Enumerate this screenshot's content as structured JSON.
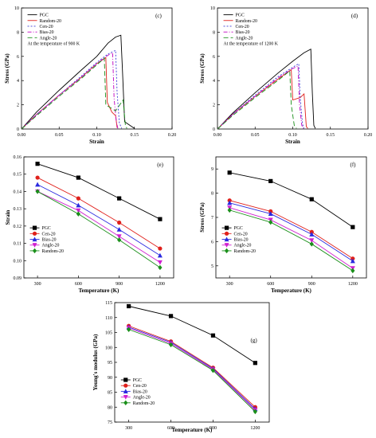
{
  "chart_data": [
    {
      "id": "c",
      "type": "line",
      "panel_label": "(c)",
      "annotation": "At the temperature of 900 K",
      "xlabel": "Strain",
      "ylabel": "Stress (GPa)",
      "xlim": [
        0,
        0.2
      ],
      "ylim": [
        0,
        10
      ],
      "xticks": [
        "0.00",
        "0.05",
        "0.10",
        "0.15",
        "0.20"
      ],
      "yticks": [
        "0",
        "2",
        "4",
        "6",
        "8",
        "10"
      ],
      "legend_position": "top-left",
      "series": [
        {
          "name": "PGC",
          "color": "#000000",
          "dash": "",
          "points": [
            [
              0,
              0
            ],
            [
              0.02,
              1.4
            ],
            [
              0.05,
              3.2
            ],
            [
              0.08,
              4.9
            ],
            [
              0.1,
              6.0
            ],
            [
              0.115,
              7.1
            ],
            [
              0.125,
              7.6
            ],
            [
              0.132,
              7.75
            ],
            [
              0.134,
              5.0
            ],
            [
              0.137,
              0.6
            ],
            [
              0.15,
              0.05
            ]
          ]
        },
        {
          "name": "Random-20",
          "color": "#e0201b",
          "dash": "",
          "points": [
            [
              0,
              0
            ],
            [
              0.02,
              1.2
            ],
            [
              0.05,
              2.8
            ],
            [
              0.08,
              4.3
            ],
            [
              0.1,
              5.4
            ],
            [
              0.112,
              5.9
            ],
            [
              0.114,
              2.2
            ],
            [
              0.12,
              1.4
            ],
            [
              0.125,
              1.1
            ],
            [
              0.127,
              0.1
            ]
          ]
        },
        {
          "name": "Cen-20",
          "color": "#3a3ad6",
          "dash": "2,2",
          "points": [
            [
              0,
              0
            ],
            [
              0.02,
              1.2
            ],
            [
              0.05,
              2.8
            ],
            [
              0.08,
              4.4
            ],
            [
              0.1,
              5.5
            ],
            [
              0.115,
              6.2
            ],
            [
              0.125,
              6.5
            ],
            [
              0.127,
              3.0
            ],
            [
              0.13,
              0.5
            ],
            [
              0.133,
              0.05
            ]
          ]
        },
        {
          "name": "Bias-20",
          "color": "#c000c0",
          "dash": "5,2,1,2",
          "points": [
            [
              0,
              0
            ],
            [
              0.02,
              1.2
            ],
            [
              0.05,
              2.8
            ],
            [
              0.08,
              4.3
            ],
            [
              0.1,
              5.4
            ],
            [
              0.115,
              6.1
            ],
            [
              0.121,
              6.3
            ],
            [
              0.123,
              2.5
            ],
            [
              0.126,
              0.6
            ],
            [
              0.128,
              0.05
            ]
          ]
        },
        {
          "name": "Angle-20",
          "color": "#1a8f1a",
          "dash": "6,3",
          "points": [
            [
              0,
              0
            ],
            [
              0.02,
              1.1
            ],
            [
              0.05,
              2.7
            ],
            [
              0.08,
              4.2
            ],
            [
              0.1,
              5.3
            ],
            [
              0.11,
              5.85
            ],
            [
              0.112,
              2.0
            ],
            [
              0.125,
              1.5
            ],
            [
              0.135,
              2.4
            ],
            [
              0.138,
              0.3
            ],
            [
              0.14,
              0.05
            ]
          ]
        }
      ]
    },
    {
      "id": "d",
      "type": "line",
      "panel_label": "(d)",
      "annotation": "At the temperature of 1200 K",
      "xlabel": "Strain",
      "ylabel": "Stress (GPa)",
      "xlim": [
        0,
        0.2
      ],
      "ylim": [
        0,
        10
      ],
      "xticks": [
        "0.00",
        "0.05",
        "0.10",
        "0.15",
        "0.20"
      ],
      "yticks": [
        "0",
        "2",
        "4",
        "6",
        "8",
        "10"
      ],
      "legend_position": "top-left",
      "series": [
        {
          "name": "PGC",
          "color": "#000000",
          "dash": "",
          "points": [
            [
              0,
              0
            ],
            [
              0.02,
              1.3
            ],
            [
              0.05,
              3.0
            ],
            [
              0.08,
              4.6
            ],
            [
              0.1,
              5.6
            ],
            [
              0.115,
              6.3
            ],
            [
              0.124,
              6.6
            ],
            [
              0.126,
              3.0
            ],
            [
              0.128,
              0.3
            ],
            [
              0.13,
              0.05
            ]
          ]
        },
        {
          "name": "Random-20",
          "color": "#e0201b",
          "dash": "",
          "points": [
            [
              0,
              0
            ],
            [
              0.02,
              1.2
            ],
            [
              0.05,
              2.7
            ],
            [
              0.08,
              4.1
            ],
            [
              0.098,
              4.9
            ],
            [
              0.1,
              2.4
            ],
            [
              0.11,
              2.6
            ],
            [
              0.115,
              2.9
            ],
            [
              0.118,
              0.2
            ],
            [
              0.12,
              0.05
            ]
          ]
        },
        {
          "name": "Cen-20",
          "color": "#3a3ad6",
          "dash": "2,2",
          "points": [
            [
              0,
              0
            ],
            [
              0.02,
              1.2
            ],
            [
              0.05,
              2.8
            ],
            [
              0.08,
              4.3
            ],
            [
              0.1,
              5.1
            ],
            [
              0.108,
              5.4
            ],
            [
              0.11,
              2.5
            ],
            [
              0.113,
              0.4
            ],
            [
              0.115,
              0.05
            ]
          ]
        },
        {
          "name": "Bias-20",
          "color": "#c000c0",
          "dash": "5,2,1,2",
          "points": [
            [
              0,
              0
            ],
            [
              0.02,
              1.2
            ],
            [
              0.05,
              2.7
            ],
            [
              0.08,
              4.2
            ],
            [
              0.1,
              5.0
            ],
            [
              0.107,
              5.2
            ],
            [
              0.109,
              2.0
            ],
            [
              0.112,
              0.3
            ],
            [
              0.114,
              0.05
            ]
          ]
        },
        {
          "name": "Angle-20",
          "color": "#1a8f1a",
          "dash": "6,3",
          "points": [
            [
              0,
              0
            ],
            [
              0.02,
              1.1
            ],
            [
              0.05,
              2.6
            ],
            [
              0.08,
              4.0
            ],
            [
              0.096,
              4.8
            ],
            [
              0.098,
              2.0
            ],
            [
              0.102,
              0.3
            ],
            [
              0.105,
              0.05
            ]
          ]
        }
      ]
    },
    {
      "id": "e",
      "type": "line",
      "panel_label": "(e)",
      "xlabel": "Temperature (K)",
      "ylabel": "Strain",
      "xlim": [
        200,
        1300
      ],
      "ylim": [
        0.09,
        0.16
      ],
      "xticks": [
        "300",
        "600",
        "900",
        "1200"
      ],
      "yticks": [
        "0.09",
        "0.10",
        "0.11",
        "0.12",
        "0.13",
        "0.14",
        "0.15",
        "0.16"
      ],
      "legend_position": "bottom-left",
      "x": [
        300,
        600,
        900,
        1200
      ],
      "series": [
        {
          "name": "PGC",
          "color": "#000000",
          "marker": "square",
          "values": [
            0.156,
            0.148,
            0.136,
            0.124
          ]
        },
        {
          "name": "Cen-20",
          "color": "#e0201b",
          "marker": "circle",
          "values": [
            0.148,
            0.136,
            0.122,
            0.107
          ]
        },
        {
          "name": "Bias-20",
          "color": "#2a2ae0",
          "marker": "triangle-up",
          "values": [
            0.144,
            0.132,
            0.118,
            0.103
          ]
        },
        {
          "name": "Angle-20",
          "color": "#d020d0",
          "marker": "triangle-down",
          "values": [
            0.14,
            0.129,
            0.114,
            0.099
          ]
        },
        {
          "name": "Random-20",
          "color": "#1a8f1a",
          "marker": "diamond",
          "values": [
            0.14,
            0.127,
            0.112,
            0.096
          ]
        }
      ]
    },
    {
      "id": "f",
      "type": "line",
      "panel_label": "(f)",
      "xlabel": "Temperature (K)",
      "ylabel": "Stress (GPa)",
      "xlim": [
        200,
        1300
      ],
      "ylim": [
        4.5,
        9.5
      ],
      "xticks": [
        "300",
        "600",
        "900",
        "1200"
      ],
      "yticks": [
        "5",
        "6",
        "7",
        "8",
        "9"
      ],
      "legend_position": "bottom-left",
      "x": [
        300,
        600,
        900,
        1200
      ],
      "series": [
        {
          "name": "PGC",
          "color": "#000000",
          "marker": "square",
          "values": [
            8.85,
            8.5,
            7.75,
            6.6
          ]
        },
        {
          "name": "Cen-20",
          "color": "#e0201b",
          "marker": "circle",
          "values": [
            7.7,
            7.25,
            6.4,
            5.3
          ]
        },
        {
          "name": "Bias-20",
          "color": "#2a2ae0",
          "marker": "triangle-up",
          "values": [
            7.6,
            7.15,
            6.3,
            5.2
          ]
        },
        {
          "name": "Angle-20",
          "color": "#d020d0",
          "marker": "triangle-down",
          "values": [
            7.4,
            6.9,
            6.05,
            4.9
          ]
        },
        {
          "name": "Random-20",
          "color": "#1a8f1a",
          "marker": "diamond",
          "values": [
            7.3,
            6.8,
            5.9,
            4.8
          ]
        }
      ]
    },
    {
      "id": "g",
      "type": "line",
      "panel_label": "(g)",
      "xlabel": "Temperature (K)",
      "ylabel": "Young's modulus (GPa)",
      "xlim": [
        200,
        1300
      ],
      "ylim": [
        75,
        115
      ],
      "xticks": [
        "300",
        "600",
        "900",
        "1200"
      ],
      "yticks": [
        "75",
        "80",
        "85",
        "90",
        "95",
        "100",
        "105",
        "110",
        "115"
      ],
      "legend_position": "bottom-left",
      "x": [
        300,
        600,
        900,
        1200
      ],
      "series": [
        {
          "name": "PGC",
          "color": "#000000",
          "marker": "square",
          "values": [
            113.8,
            110.5,
            104.0,
            94.8
          ]
        },
        {
          "name": "Cen-20",
          "color": "#e0201b",
          "marker": "circle",
          "values": [
            107.2,
            102.0,
            93.2,
            80.0
          ]
        },
        {
          "name": "Bias-20",
          "color": "#2a2ae0",
          "marker": "triangle-up",
          "values": [
            106.8,
            101.7,
            92.9,
            79.4
          ]
        },
        {
          "name": "Angle-20",
          "color": "#d020d0",
          "marker": "triangle-down",
          "values": [
            106.5,
            101.3,
            92.6,
            79.0
          ]
        },
        {
          "name": "Random-20",
          "color": "#1a8f1a",
          "marker": "diamond",
          "values": [
            106.0,
            100.9,
            92.3,
            78.5
          ]
        }
      ]
    }
  ]
}
